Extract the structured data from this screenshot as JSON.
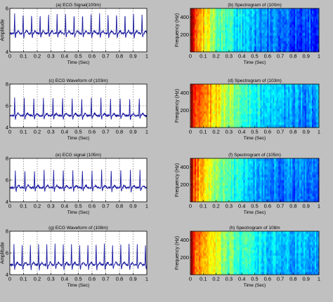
{
  "figure": {
    "background": "#c0c0c0"
  },
  "chart_data": [
    {
      "type": "line",
      "title": "(a) ECG Signal(100m)",
      "xlabel": "Time (Sec)",
      "ylabel": "Amplitude",
      "xlim": [
        0,
        1
      ],
      "ylim": [
        4,
        6
      ],
      "x_ticks": [
        "0",
        "0.1",
        "0.2",
        "0.3",
        "0.4",
        "0.5",
        "0.6",
        "0.7",
        "0.8",
        "0.9",
        "1"
      ],
      "y_ticks": [
        "4",
        "6"
      ],
      "grid": true,
      "line_color": "#1a1aa0",
      "series": [
        {
          "baseline": 4.85,
          "peak": 5.75,
          "beats": [
            0.035,
            0.097,
            0.159,
            0.221,
            0.283,
            0.345,
            0.407,
            0.469,
            0.531,
            0.593,
            0.655,
            0.717,
            0.779,
            0.841,
            0.903,
            0.965
          ]
        }
      ]
    },
    {
      "type": "heatmap",
      "title": "(b) Spectrogram of (100m)",
      "xlabel": "Time (Sec)",
      "ylabel": "Frequency (Hz)",
      "xlim": [
        0,
        1
      ],
      "ylim": [
        0,
        500
      ],
      "x_ticks": [
        "0",
        "0.1",
        "0.2",
        "0.3",
        "0.4",
        "0.5",
        "0.6",
        "0.7",
        "0.8",
        "0.9",
        "1"
      ],
      "y_ticks": [
        "200",
        "400"
      ],
      "grid": false,
      "intensity_profile": [
        0.95,
        0.7,
        0.52,
        0.42,
        0.36,
        0.3,
        0.26,
        0.24,
        0.22,
        0.22,
        0.21
      ]
    },
    {
      "type": "line",
      "title": "(c) ECG Waveform of (103m)",
      "xlabel": "Time (Sec)",
      "ylabel": "",
      "xlim": [
        0,
        1
      ],
      "ylim": [
        4,
        8
      ],
      "x_ticks": [
        "0",
        "0.1",
        "0.2",
        "0.3",
        "0.4",
        "0.5",
        "0.6",
        "0.7",
        "0.8",
        "0.9",
        "1"
      ],
      "y_ticks": [
        "4",
        "6",
        "8"
      ],
      "grid": true,
      "line_color": "#1a1aa0",
      "series": [
        {
          "baseline": 5.1,
          "peak": 6.7,
          "beats": [
            0.035,
            0.105,
            0.175,
            0.245,
            0.315,
            0.385,
            0.455,
            0.525,
            0.595,
            0.665,
            0.735,
            0.805,
            0.875,
            0.945
          ]
        }
      ]
    },
    {
      "type": "heatmap",
      "title": "(d) Spectrogram of (103m)",
      "xlabel": "Time (Sec)",
      "ylabel": "Frequency (Hz)",
      "xlim": [
        0,
        1
      ],
      "ylim": [
        0,
        500
      ],
      "x_ticks": [
        "0",
        "0.1",
        "0.2",
        "0.3",
        "0.4",
        "0.5",
        "0.6",
        "0.7",
        "0.8",
        "0.9",
        "1"
      ],
      "y_ticks": [
        "200",
        "400"
      ],
      "grid": false,
      "intensity_profile": [
        0.88,
        0.8,
        0.66,
        0.55,
        0.46,
        0.4,
        0.35,
        0.32,
        0.3,
        0.3,
        0.29
      ]
    },
    {
      "type": "line",
      "title": "(e) ECG signal (105m)",
      "xlabel": "Time (Sec)",
      "ylabel": "",
      "xlim": [
        0,
        1
      ],
      "ylim": [
        4,
        8
      ],
      "x_ticks": [
        "0",
        "0.1",
        "0.2",
        "0.3",
        "0.4",
        "0.5",
        "0.6",
        "0.7",
        "0.8",
        "0.9",
        "1"
      ],
      "y_ticks": [
        "4",
        "6",
        "8"
      ],
      "grid": true,
      "line_color": "#1a1aa0",
      "series": [
        {
          "baseline": 5.3,
          "peak": 6.9,
          "beats": [
            0.04,
            0.11,
            0.18,
            0.25,
            0.32,
            0.39,
            0.46,
            0.53,
            0.6,
            0.67,
            0.74,
            0.81,
            0.88,
            0.95
          ]
        }
      ]
    },
    {
      "type": "heatmap",
      "title": "(f) Spectrogram of (105m)",
      "xlabel": "Time (Sec)",
      "ylabel": "Frequency (Hz)",
      "xlim": [
        0,
        1
      ],
      "ylim": [
        0,
        500
      ],
      "x_ticks": [
        "0",
        "0.1",
        "0.2",
        "0.3",
        "0.4",
        "0.5",
        "0.6",
        "0.7",
        "0.8",
        "0.9",
        "1"
      ],
      "y_ticks": [
        "200",
        "400"
      ],
      "grid": false,
      "intensity_profile": [
        0.9,
        0.68,
        0.55,
        0.45,
        0.38,
        0.33,
        0.29,
        0.27,
        0.26,
        0.25,
        0.25
      ]
    },
    {
      "type": "line",
      "title": "(g) ECG Waveform of (108m)",
      "xlabel": "Time (Sec)",
      "ylabel": "Amplitude",
      "xlim": [
        0,
        1
      ],
      "ylim": [
        4,
        8
      ],
      "x_ticks": [
        "0",
        "0.1",
        "0.2",
        "0.3",
        "0.4",
        "0.5",
        "0.6",
        "0.7",
        "0.8",
        "0.9",
        "1"
      ],
      "y_ticks": [
        "4",
        "6",
        "8"
      ],
      "grid": true,
      "line_color": "#1a1aa0",
      "series": [
        {
          "baseline": 4.9,
          "peak": 6.8,
          "beats": [
            0.03,
            0.09,
            0.15,
            0.21,
            0.27,
            0.33,
            0.39,
            0.45,
            0.51,
            0.57,
            0.63,
            0.69,
            0.75,
            0.81,
            0.87,
            0.93,
            0.99
          ]
        }
      ]
    },
    {
      "type": "heatmap",
      "title": "(h) Spectrogram of 108m",
      "xlabel": "Time (Sec)",
      "ylabel": "Frequency (Hz)",
      "xlim": [
        0,
        1
      ],
      "ylim": [
        0,
        500
      ],
      "x_ticks": [
        "0",
        "0.1",
        "0.2",
        "0.3",
        "0.4",
        "0.5",
        "0.6",
        "0.7",
        "0.8",
        "0.9",
        "1"
      ],
      "y_ticks": [
        "200",
        "400"
      ],
      "grid": false,
      "intensity_profile": [
        0.88,
        0.74,
        0.6,
        0.5,
        0.44,
        0.4,
        0.36,
        0.34,
        0.32,
        0.32,
        0.31
      ]
    }
  ]
}
